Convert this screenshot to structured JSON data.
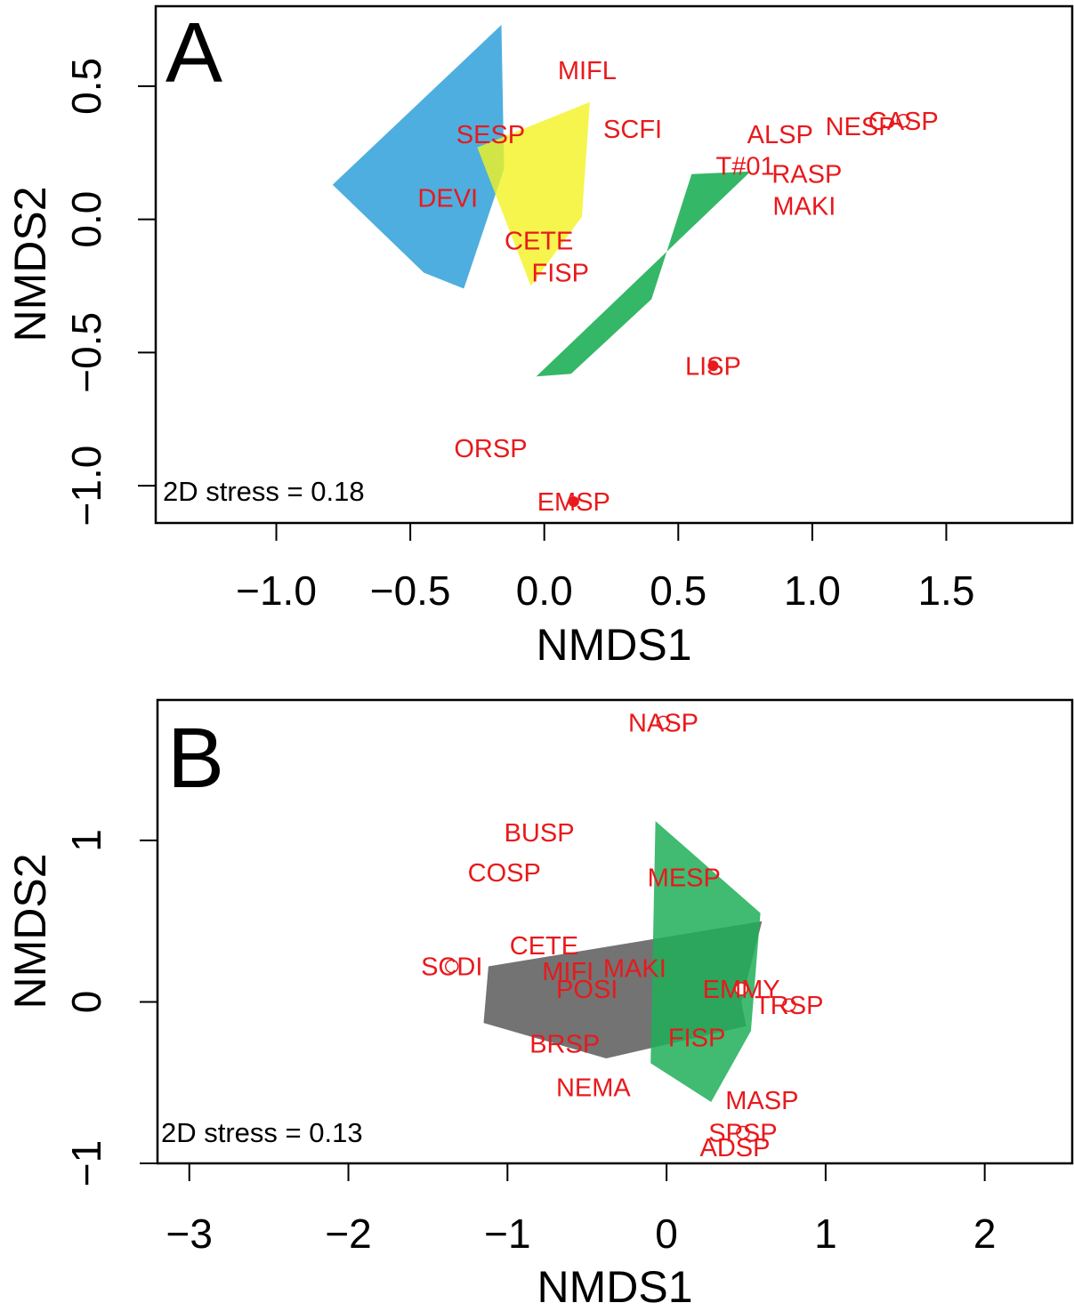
{
  "chart_data": [
    {
      "panel": "A",
      "type": "scatter",
      "title": "",
      "panel_label": "A",
      "xlabel": "NMDS1",
      "ylabel": "NMDS2",
      "annotation": "2D stress = 0.18",
      "xticks": [
        -1.0,
        -0.5,
        0.0,
        0.5,
        1.0,
        1.5
      ],
      "xtick_labels": [
        "−1.0",
        "−0.5",
        "0.0",
        "0.5",
        "1.0",
        "1.5"
      ],
      "yticks": [
        -1.0,
        -0.5,
        0.0,
        0.5
      ],
      "ytick_labels": [
        "−1.0",
        "−0.5",
        "0.0",
        "0.5"
      ],
      "xlim": [
        -1.45,
        1.97
      ],
      "ylim": [
        -1.14,
        0.8
      ],
      "label_color": "#e8191c",
      "points": [
        {
          "label": "MIFL",
          "x": 0.16,
          "y": 0.56,
          "marker": "none"
        },
        {
          "label": "SESP",
          "x": -0.2,
          "y": 0.32,
          "marker": "none"
        },
        {
          "label": "SCFI",
          "x": 0.33,
          "y": 0.34,
          "marker": "none"
        },
        {
          "label": "ALSP",
          "x": 0.88,
          "y": 0.32,
          "marker": "none"
        },
        {
          "label": "NESP",
          "x": 1.18,
          "y": 0.35,
          "marker": "none"
        },
        {
          "label": "CASP",
          "x": 1.34,
          "y": 0.37,
          "marker": "open"
        },
        {
          "label": "T#01",
          "x": 0.75,
          "y": 0.2,
          "marker": "none"
        },
        {
          "label": "RASP",
          "x": 0.98,
          "y": 0.17,
          "marker": "none"
        },
        {
          "label": "MAKI",
          "x": 0.97,
          "y": 0.05,
          "marker": "none"
        },
        {
          "label": "DEVI",
          "x": -0.36,
          "y": 0.08,
          "marker": "none"
        },
        {
          "label": "CETE",
          "x": -0.02,
          "y": -0.08,
          "marker": "none"
        },
        {
          "label": "FISP",
          "x": 0.06,
          "y": -0.2,
          "marker": "none"
        },
        {
          "label": "LISP",
          "x": 0.63,
          "y": -0.55,
          "marker": "filled"
        },
        {
          "label": "ORSP",
          "x": -0.2,
          "y": -0.86,
          "marker": "none"
        },
        {
          "label": "EMSP",
          "x": 0.11,
          "y": -1.06,
          "marker": "filled"
        }
      ],
      "hulls": [
        {
          "color": "#3ba5dc",
          "opacity": 0.9,
          "points": [
            [
              -0.79,
              0.13
            ],
            [
              -0.16,
              0.73
            ],
            [
              -0.15,
              0.19
            ],
            [
              -0.3,
              -0.26
            ],
            [
              -0.45,
              -0.2
            ]
          ]
        },
        {
          "color": "#f3f321",
          "opacity": 0.8,
          "points": [
            [
              -0.25,
              0.27
            ],
            [
              0.17,
              0.44
            ],
            [
              0.14,
              0.01
            ],
            [
              -0.05,
              -0.25
            ]
          ]
        },
        {
          "color": "#1faf58",
          "opacity": 0.9,
          "points": [
            [
              -0.03,
              -0.59
            ],
            [
              0.1,
              -0.58
            ],
            [
              0.4,
              -0.3
            ],
            [
              0.55,
              0.17
            ],
            [
              0.77,
              0.18
            ]
          ]
        }
      ]
    },
    {
      "panel": "B",
      "type": "scatter",
      "title": "",
      "panel_label": "B",
      "xlabel": "NMDS1",
      "ylabel": "NMDS2",
      "annotation": "2D stress = 0.13",
      "xticks": [
        -3,
        -2,
        -1,
        0,
        1,
        2
      ],
      "xtick_labels": [
        "−3",
        "−2",
        "−1",
        "0",
        "1",
        "2"
      ],
      "yticks": [
        -1,
        0,
        1
      ],
      "ytick_labels": [
        "−1",
        "0",
        "1"
      ],
      "xlim": [
        -3.2,
        2.55
      ],
      "ylim": [
        -1.0,
        1.87
      ],
      "label_color": "#e8191c",
      "points": [
        {
          "label": "NASP",
          "x": -0.02,
          "y": 1.73,
          "marker": "open"
        },
        {
          "label": "BUSP",
          "x": -0.8,
          "y": 1.05,
          "marker": "none"
        },
        {
          "label": "COSP",
          "x": -1.02,
          "y": 0.8,
          "marker": "none"
        },
        {
          "label": "MESP",
          "x": 0.11,
          "y": 0.77,
          "marker": "none"
        },
        {
          "label": "CETE",
          "x": -0.77,
          "y": 0.35,
          "marker": "none"
        },
        {
          "label": "SCDI",
          "x": -1.35,
          "y": 0.22,
          "marker": "open"
        },
        {
          "label": "MIFI",
          "x": -0.62,
          "y": 0.19,
          "marker": "none"
        },
        {
          "label": "MAKI",
          "x": -0.2,
          "y": 0.21,
          "marker": "none"
        },
        {
          "label": "POSI",
          "x": -0.5,
          "y": 0.08,
          "marker": "none"
        },
        {
          "label": "EMMY",
          "x": 0.47,
          "y": 0.08,
          "marker": "open"
        },
        {
          "label": "TRSP",
          "x": 0.77,
          "y": -0.02,
          "marker": "open"
        },
        {
          "label": "FISP",
          "x": 0.19,
          "y": -0.22,
          "marker": "none"
        },
        {
          "label": "BRSP",
          "x": -0.64,
          "y": -0.26,
          "marker": "none"
        },
        {
          "label": "NEMA",
          "x": -0.46,
          "y": -0.53,
          "marker": "none"
        },
        {
          "label": "MASP",
          "x": 0.6,
          "y": -0.61,
          "marker": "none"
        },
        {
          "label": "SPSP",
          "x": 0.48,
          "y": -0.81,
          "marker": "open"
        },
        {
          "label": "ADSP",
          "x": 0.43,
          "y": -0.9,
          "marker": "none"
        }
      ],
      "hulls": [
        {
          "color": "#6b6b6b",
          "opacity": 0.95,
          "points": [
            [
              -1.12,
              0.22
            ],
            [
              0.6,
              0.5
            ],
            [
              0.47,
              0.0
            ],
            [
              0.5,
              -0.15
            ],
            [
              -0.38,
              -0.35
            ],
            [
              -1.15,
              -0.13
            ]
          ]
        },
        {
          "color": "#1faf58",
          "opacity": 0.85,
          "points": [
            [
              -0.07,
              1.12
            ],
            [
              0.59,
              0.55
            ],
            [
              0.53,
              -0.18
            ],
            [
              0.28,
              -0.62
            ],
            [
              -0.1,
              -0.38
            ]
          ]
        }
      ]
    }
  ]
}
